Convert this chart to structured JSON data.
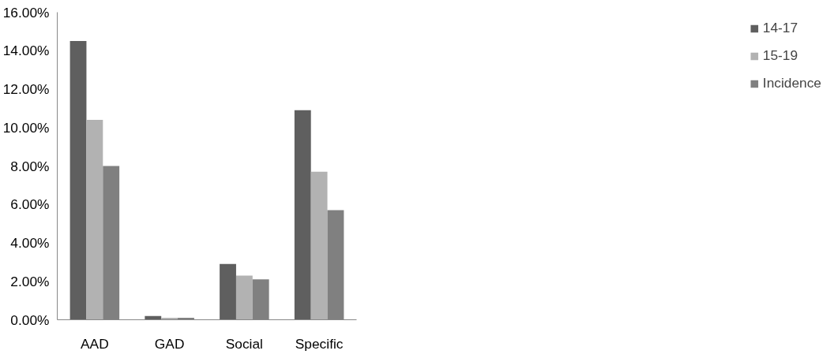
{
  "chart_data": {
    "type": "bar",
    "categories": [
      "AAD",
      "GAD",
      "Social",
      "Specific"
    ],
    "series": [
      {
        "name": "14-17",
        "color": "#5f5f5f",
        "values": [
          14.5,
          0.2,
          2.9,
          10.9
        ]
      },
      {
        "name": "15-19",
        "color": "#b2b2b2",
        "values": [
          10.4,
          0.1,
          2.3,
          7.7
        ]
      },
      {
        "name": "Incidence",
        "color": "#808080",
        "values": [
          8.0,
          0.1,
          2.1,
          5.7
        ]
      }
    ],
    "ylim": [
      0,
      16
    ],
    "yticks": [
      {
        "value": 0,
        "label": "0.00%"
      },
      {
        "value": 2,
        "label": "2.00%"
      },
      {
        "value": 4,
        "label": "4.00%"
      },
      {
        "value": 6,
        "label": "6.00%"
      },
      {
        "value": 8,
        "label": "8.00%"
      },
      {
        "value": 10,
        "label": "10.00%"
      },
      {
        "value": 12,
        "label": "12.00%"
      },
      {
        "value": 14,
        "label": "14.00%"
      },
      {
        "value": 16,
        "label": "16.00%"
      }
    ],
    "grid": false,
    "legend": "right"
  }
}
